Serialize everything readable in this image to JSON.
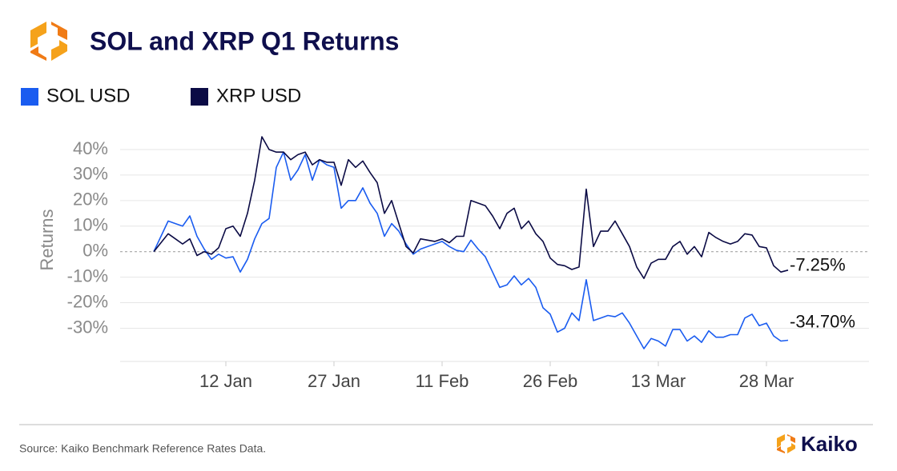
{
  "chart_data": {
    "type": "line",
    "title": "SOL and XRP Q1 Returns",
    "y_label": "Returns",
    "source": "Source: Kaiko Benchmark Reference Rates Data.",
    "brand": "Kaiko",
    "categories": [
      null,
      null,
      null,
      null,
      null,
      null,
      null,
      null,
      null,
      null,
      "12 Jan",
      null,
      null,
      null,
      null,
      null,
      null,
      null,
      null,
      null,
      null,
      null,
      null,
      null,
      null,
      "27 Jan",
      null,
      null,
      null,
      null,
      null,
      null,
      null,
      null,
      null,
      null,
      null,
      null,
      null,
      null,
      "11 Feb",
      null,
      null,
      null,
      null,
      null,
      null,
      null,
      null,
      null,
      null,
      null,
      null,
      null,
      null,
      "26 Feb",
      null,
      null,
      null,
      null,
      null,
      null,
      null,
      null,
      null,
      null,
      null,
      null,
      null,
      null,
      "13 Mar",
      null,
      null,
      null,
      null,
      null,
      null,
      null,
      null,
      null,
      null,
      null,
      null,
      null,
      null,
      "28 Mar",
      null,
      null,
      null
    ],
    "ylim": [
      -43,
      45
    ],
    "yticks": [
      {
        "value": 40,
        "label": "40%"
      },
      {
        "value": 30,
        "label": "30%"
      },
      {
        "value": 20,
        "label": "20%"
      },
      {
        "value": 10,
        "label": "10%"
      },
      {
        "value": 0,
        "label": "0%"
      },
      {
        "value": -10,
        "label": "-10%"
      },
      {
        "value": -20,
        "label": "-20%"
      },
      {
        "value": -30,
        "label": "-30%"
      }
    ],
    "grid": true,
    "series": [
      {
        "name": "SOL USD",
        "color": "#1a5cf0",
        "values": [
          0,
          6,
          12,
          11,
          10,
          14,
          6,
          1,
          -3,
          -1,
          -2.5,
          -2,
          -8,
          -3,
          5,
          11,
          13,
          33,
          39,
          28,
          32,
          38,
          28,
          36,
          34,
          33,
          17,
          20,
          20,
          25,
          19,
          15,
          6,
          11,
          8,
          3,
          -1,
          1,
          2,
          3,
          4,
          2,
          0.5,
          0,
          4.5,
          1,
          -2,
          -8,
          -14,
          -13,
          -9.5,
          -13,
          -10.5,
          -14,
          -22,
          -24.5,
          -31.5,
          -30,
          -24,
          -27,
          -11,
          -27,
          -26,
          -25,
          -25.5,
          -24,
          -28,
          -33,
          -38,
          -34,
          -35,
          -37,
          -30.5,
          -30.5,
          -35,
          -33,
          -35.5,
          -31,
          -33.5,
          -33.5,
          -32.5,
          -32.5,
          -26,
          -24.5,
          -29,
          -28,
          -33,
          -35,
          -34.7
        ],
        "value_labels": [
          null,
          null,
          null,
          null,
          null,
          null,
          null,
          null,
          null,
          null,
          null,
          null,
          null,
          null,
          null,
          null,
          null,
          null,
          null,
          null,
          null,
          null,
          null,
          null,
          null,
          null,
          null,
          null,
          null,
          null,
          null,
          null,
          null,
          null,
          null,
          null,
          null,
          null,
          null,
          null,
          null,
          null,
          null,
          null,
          null,
          null,
          null,
          null,
          null,
          null,
          null,
          null,
          null,
          null,
          null,
          null,
          null,
          null,
          null,
          null,
          null,
          null,
          null,
          null,
          null,
          null,
          null,
          null,
          null,
          null,
          null,
          null,
          null,
          null,
          null,
          null,
          null,
          null,
          null,
          null,
          null,
          null,
          null,
          null,
          null,
          null,
          null,
          null,
          "-34.70%"
        ]
      },
      {
        "name": "XRP USD",
        "color": "#0b0b45",
        "values": [
          0,
          3.5,
          7,
          5,
          3,
          5,
          -1.5,
          0,
          -1,
          1.5,
          9,
          10,
          6,
          15,
          28,
          45,
          40,
          39,
          39,
          36,
          38,
          39,
          34,
          36,
          35,
          35,
          26,
          36,
          33,
          35.5,
          31,
          27,
          15,
          20,
          11,
          2,
          -0.5,
          5,
          4.5,
          4,
          5,
          3.5,
          6,
          6,
          20,
          19,
          18,
          14,
          9,
          15,
          17,
          9,
          12,
          7,
          4,
          -2.5,
          -5,
          -5.5,
          -7,
          -6,
          24.5,
          2,
          8,
          8,
          12,
          7,
          2,
          -6,
          -10.5,
          -4.5,
          -3,
          -3,
          2,
          4,
          -1,
          2,
          -2,
          7.5,
          5.5,
          4,
          3,
          4,
          7,
          6.5,
          2,
          1.5,
          -5.5,
          -8,
          -7.25
        ],
        "value_labels": [
          null,
          null,
          null,
          null,
          null,
          null,
          null,
          null,
          null,
          null,
          null,
          null,
          null,
          null,
          null,
          null,
          null,
          null,
          null,
          null,
          null,
          null,
          null,
          null,
          null,
          null,
          null,
          null,
          null,
          null,
          null,
          null,
          null,
          null,
          null,
          null,
          null,
          null,
          null,
          null,
          null,
          null,
          null,
          null,
          null,
          null,
          null,
          null,
          null,
          null,
          null,
          null,
          null,
          null,
          null,
          null,
          null,
          null,
          null,
          null,
          null,
          null,
          null,
          null,
          null,
          null,
          null,
          null,
          null,
          null,
          null,
          null,
          null,
          null,
          null,
          null,
          null,
          null,
          null,
          null,
          null,
          null,
          null,
          null,
          null,
          null,
          null,
          null,
          "-7.25%"
        ]
      }
    ]
  }
}
